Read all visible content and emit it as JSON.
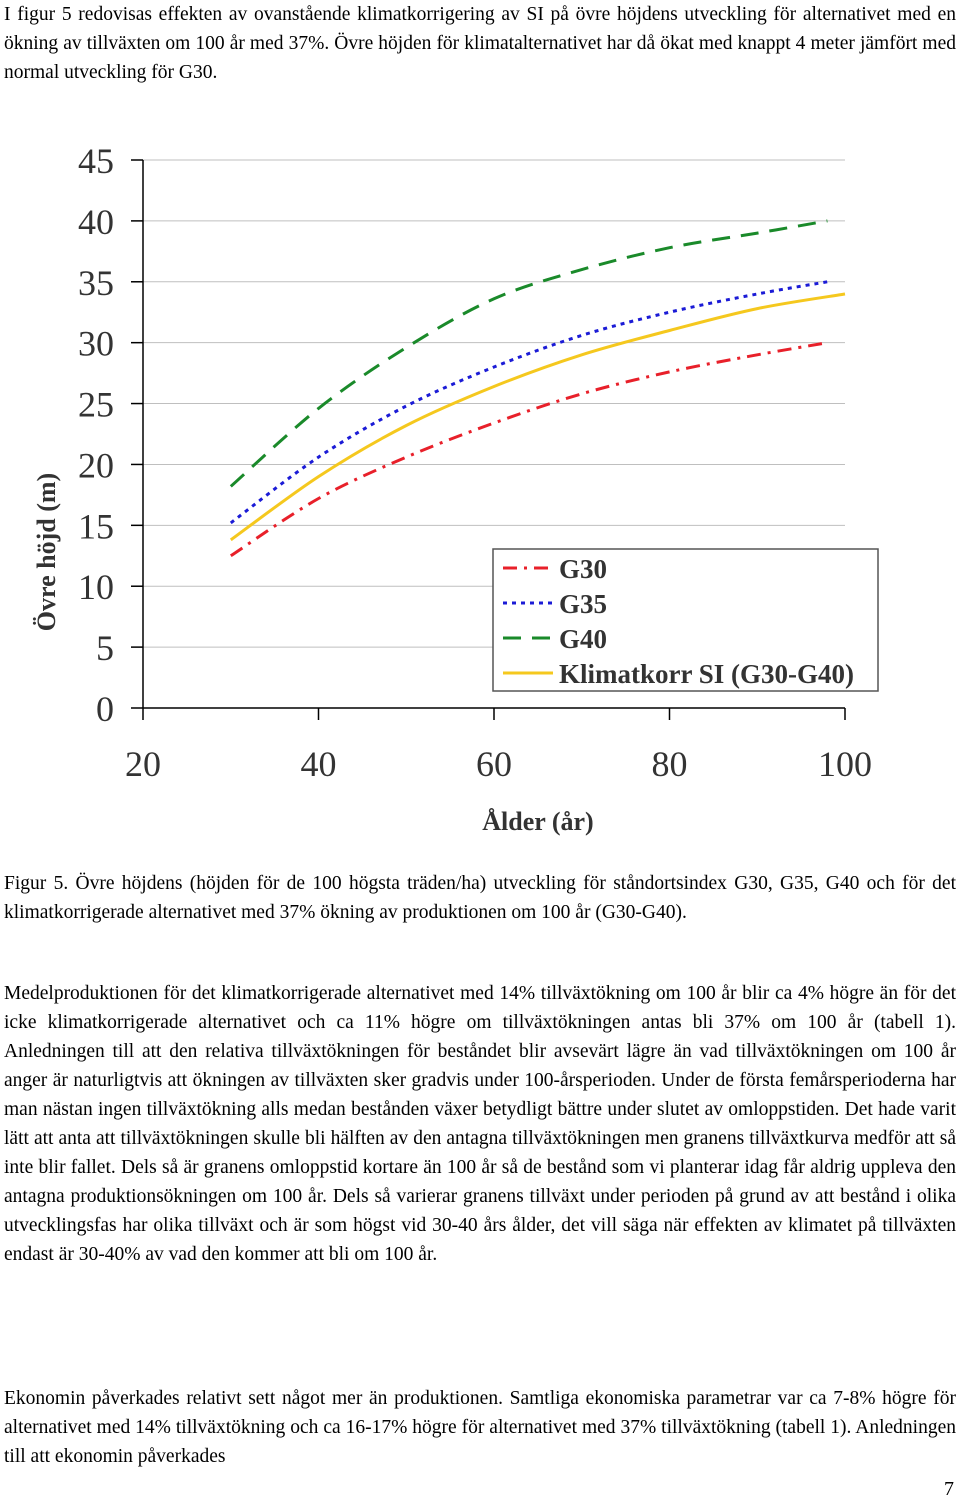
{
  "paragraphs": {
    "intro": "I figur 5 redovisas effekten av ovanstående klimatkorrigering av SI på övre höjdens utveckling för alternativet med en ökning av tillväxten om 100 år med 37%. Övre höjden för klimatalternativet har då ökat med knappt 4 meter jämfört med normal utveckling för G30.",
    "caption": "Figur 5. Övre höjdens (höjden för de 100 högsta träden/ha) utveckling för ståndortsindex G30, G35, G40 och för det klimatkorrigerade alternativet med 37% ökning av produktionen om 100 år (G30-G40).",
    "medel": "Medelproduktionen för det klimatkorrigerade alternativet med 14% tillväxtökning om 100 år blir ca 4% högre än för det icke klimatkorrigerade alternativet och ca 11% högre om tillväxtökningen antas bli 37% om 100 år (tabell 1). Anledningen till att den relativa tillväxtökningen för beståndet blir avsevärt lägre än vad tillväxtökningen om 100 år anger är naturligtvis att ökningen av tillväxten sker gradvis under 100-årsperioden. Under de första femårsperioderna har man nästan ingen tillväxtökning alls medan bestånden växer betydligt bättre under slutet av omloppstiden. Det hade varit lätt att anta att tillväxtökningen skulle bli hälften av den antagna tillväxtökningen men granens tillväxtkurva medför att så inte blir fallet. Dels så är granens omloppstid kortare än 100 år så de bestånd som vi planterar idag får aldrig uppleva den antagna produktionsökningen om 100 år. Dels så varierar granens tillväxt under perioden på grund av att bestånd i olika utvecklingsfas har olika tillväxt och är som högst vid 30-40 års ålder, det vill säga när effekten av klimatet på tillväxten endast är 30-40% av vad den kommer att bli om 100 år.",
    "ekonomi": "Ekonomin påverkades relativt sett något mer än produktionen. Samtliga ekonomiska parametrar var ca 7-8% högre för alternativet med 14% tillväxtökning och ca 16-17% högre för alternativet med 37% tillväxtökning (tabell 1). Anledningen till att ekonomin påverkades"
  },
  "page_number": "7",
  "chart_data": {
    "type": "line",
    "title": "",
    "xlabel": "Ålder (år)",
    "ylabel": "Övre höjd (m)",
    "xlim": [
      20,
      100
    ],
    "ylim": [
      0,
      45
    ],
    "x_ticks": [
      20,
      40,
      60,
      80,
      100
    ],
    "y_ticks": [
      0,
      5,
      10,
      15,
      20,
      25,
      30,
      35,
      40,
      45
    ],
    "grid": "horizontal",
    "legend_position": "bottom-right",
    "series": [
      {
        "name": "G30",
        "color": "#e8202a",
        "style": "dashdot",
        "x": [
          30,
          40,
          50,
          60,
          70,
          80,
          90,
          98
        ],
        "y": [
          12.5,
          17.2,
          20.6,
          23.4,
          25.8,
          27.6,
          29.0,
          30.0
        ]
      },
      {
        "name": "G35",
        "color": "#1b1bd6",
        "style": "dotted",
        "x": [
          30,
          40,
          50,
          60,
          70,
          80,
          90,
          98
        ],
        "y": [
          15.2,
          20.6,
          24.8,
          28.0,
          30.6,
          32.5,
          34.0,
          35.0
        ]
      },
      {
        "name": "G40",
        "color": "#1a8a2a",
        "style": "dashed",
        "x": [
          30,
          40,
          50,
          60,
          70,
          80,
          90,
          98
        ],
        "y": [
          18.2,
          24.6,
          29.6,
          33.6,
          36.0,
          37.8,
          39.0,
          40.0
        ]
      },
      {
        "name": "Klimatkorr SI (G30-G40)",
        "color": "#f5c81e",
        "style": "solid",
        "x": [
          30,
          40,
          50,
          60,
          70,
          80,
          90,
          100
        ],
        "y": [
          13.8,
          19.0,
          23.2,
          26.4,
          29.0,
          31.0,
          32.8,
          34.0
        ]
      }
    ]
  }
}
